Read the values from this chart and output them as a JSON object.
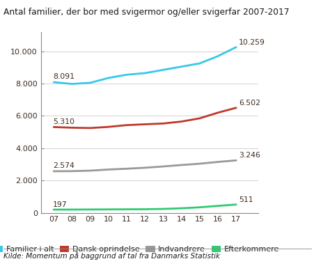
{
  "title": "Antal familier, der bor med svigermor og/eller svigerfar 2007-2017",
  "subtitle": "Kilde: Momentum på baggrund af tal fra Danmarks Statistik",
  "years": [
    7,
    8,
    9,
    10,
    11,
    12,
    13,
    14,
    15,
    16,
    17
  ],
  "series": {
    "Familier i alt": {
      "values": [
        8091,
        7980,
        8050,
        8350,
        8550,
        8650,
        8850,
        9050,
        9250,
        9700,
        10259
      ],
      "color": "#38C8E8",
      "start_label": "8.091",
      "end_label": "10.259"
    },
    "Dansk oprindelse": {
      "values": [
        5310,
        5270,
        5250,
        5320,
        5430,
        5480,
        5530,
        5650,
        5850,
        6200,
        6502
      ],
      "color": "#C0392B",
      "start_label": "5.310",
      "end_label": "6.502"
    },
    "Indvandrere": {
      "values": [
        2574,
        2580,
        2610,
        2680,
        2730,
        2790,
        2870,
        2960,
        3040,
        3150,
        3246
      ],
      "color": "#999999",
      "start_label": "2.574",
      "end_label": "3.246"
    },
    "Efterkommere": {
      "values": [
        197,
        200,
        205,
        210,
        215,
        220,
        240,
        280,
        340,
        430,
        511
      ],
      "color": "#2ECC71",
      "start_label": "197",
      "end_label": "511"
    }
  },
  "ylim": [
    0,
    11200
  ],
  "yticks": [
    0,
    2000,
    4000,
    6000,
    8000,
    10000
  ],
  "ytick_labels": [
    "0",
    "2.000",
    "4.000",
    "6.000",
    "8.000",
    "10.000"
  ],
  "xlim": [
    6.3,
    18.2
  ],
  "background_color": "#FFFFFF",
  "plot_bg": "#F5F5F0",
  "title_fontsize": 8.8,
  "axis_fontsize": 8.0,
  "label_fontsize": 7.8,
  "legend_fontsize": 8.0,
  "source_fontsize": 7.5
}
